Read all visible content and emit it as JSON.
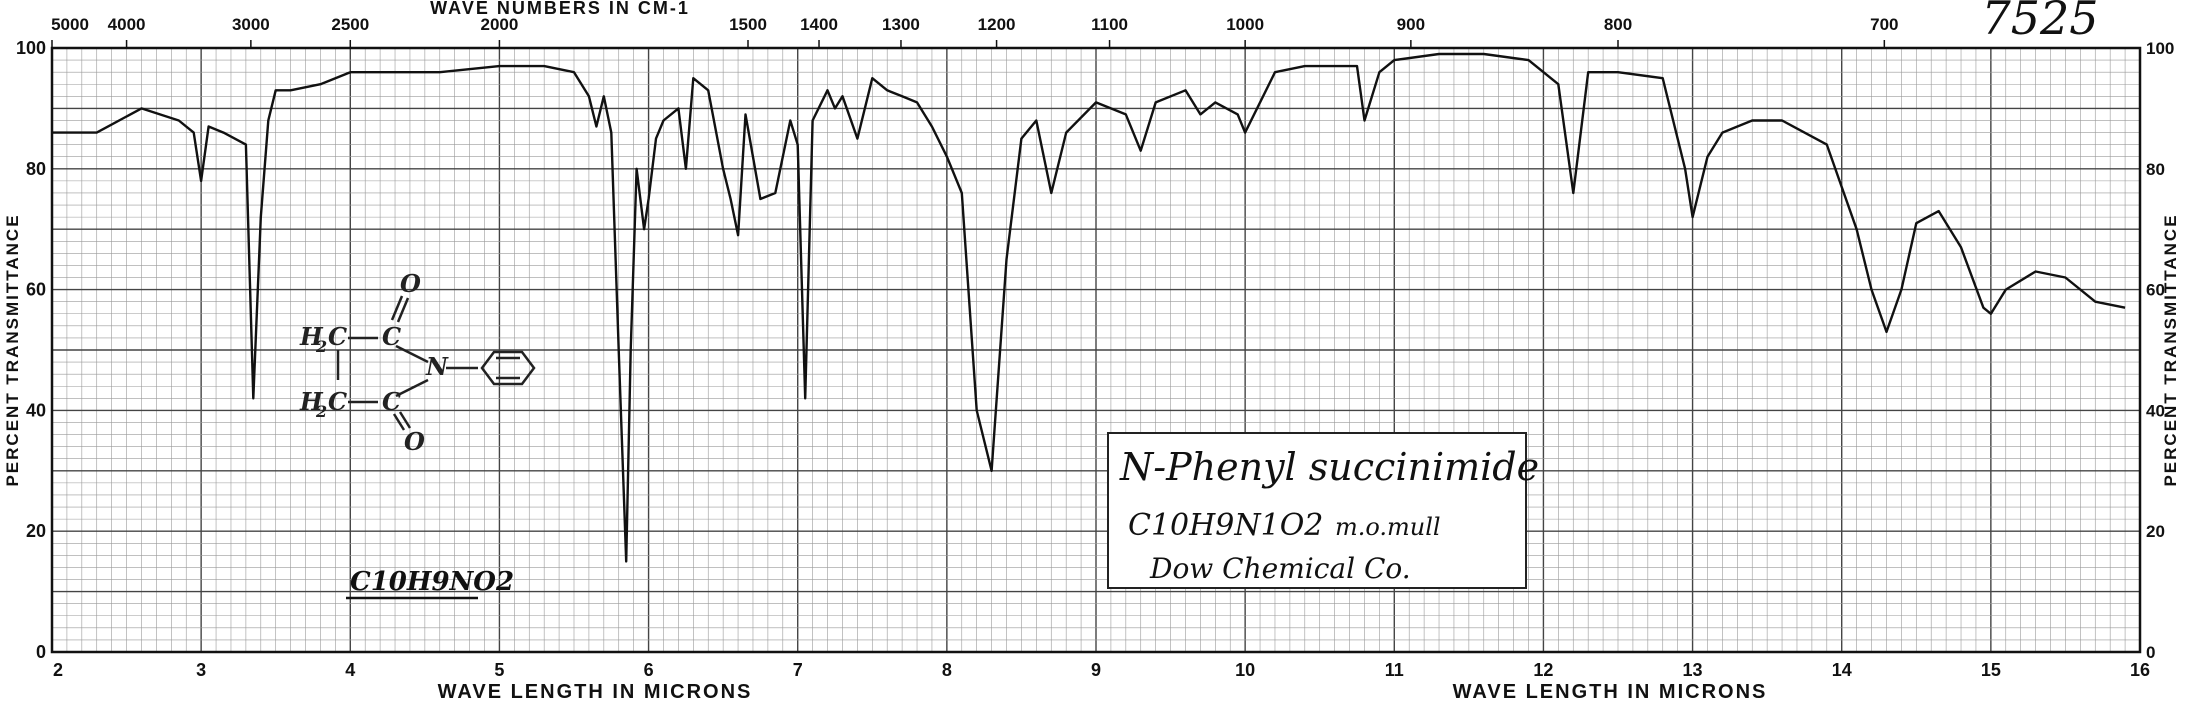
{
  "chart_data": {
    "type": "line",
    "x_axis": {
      "label": "WAVE LENGTH IN MICRONS",
      "range": [
        2,
        16
      ],
      "ticks": [
        2,
        3,
        4,
        5,
        6,
        7,
        8,
        9,
        10,
        11,
        12,
        13,
        14,
        15,
        16
      ]
    },
    "top_axis": {
      "label": "WAVE NUMBERS IN CM-1",
      "ticks": [
        {
          "label": "5000",
          "value": 5000
        },
        {
          "label": "4000",
          "value": 4000
        },
        {
          "label": "3000",
          "value": 3000
        },
        {
          "label": "2500",
          "value": 2500
        },
        {
          "label": "2000",
          "value": 2000
        },
        {
          "label": "1500",
          "value": 1500
        },
        {
          "label": "1400",
          "value": 1400
        },
        {
          "label": "1300",
          "value": 1300
        },
        {
          "label": "1200",
          "value": 1200
        },
        {
          "label": "1100",
          "value": 1100
        },
        {
          "label": "1000",
          "value": 1000
        },
        {
          "label": "900",
          "value": 900
        },
        {
          "label": "800",
          "value": 800
        },
        {
          "label": "700",
          "value": 700
        }
      ]
    },
    "y_axis": {
      "label": "PERCENT TRANSMITTANCE",
      "range": [
        0,
        100
      ],
      "left_ticks": [
        0,
        20,
        40,
        60,
        80,
        100
      ],
      "right_ticks": [
        0,
        20,
        40,
        60,
        80,
        100
      ]
    },
    "grid": true,
    "series": [
      {
        "x": [
          2.0,
          2.3,
          2.6,
          2.85,
          2.95,
          3.0,
          3.05,
          3.15,
          3.3,
          3.35,
          3.4,
          3.45,
          3.5,
          3.6,
          3.8,
          4.0,
          4.3,
          4.6,
          5.0,
          5.3,
          5.5,
          5.6,
          5.65,
          5.7,
          5.75,
          5.8,
          5.85,
          5.88,
          5.92,
          5.97,
          6.0,
          6.05,
          6.1,
          6.2,
          6.25,
          6.3,
          6.4,
          6.5,
          6.55,
          6.6,
          6.65,
          6.75,
          6.85,
          6.95,
          7.0,
          7.05,
          7.1,
          7.2,
          7.25,
          7.3,
          7.4,
          7.5,
          7.6,
          7.7,
          7.8,
          7.9,
          8.0,
          8.1,
          8.2,
          8.3,
          8.4,
          8.5,
          8.6,
          8.7,
          8.8,
          9.0,
          9.2,
          9.3,
          9.4,
          9.6,
          9.7,
          9.8,
          9.95,
          10.0,
          10.2,
          10.4,
          10.6,
          10.75,
          10.8,
          10.9,
          11.0,
          11.3,
          11.6,
          11.9,
          12.1,
          12.2,
          12.3,
          12.5,
          12.8,
          12.95,
          13.0,
          13.1,
          13.2,
          13.4,
          13.6,
          13.9,
          14.1,
          14.2,
          14.3,
          14.4,
          14.5,
          14.65,
          14.8,
          14.95,
          15.0,
          15.1,
          15.3,
          15.5,
          15.7,
          15.9
        ],
        "y": [
          86,
          86,
          90,
          88,
          86,
          78,
          87,
          86,
          84,
          42,
          72,
          88,
          93,
          93,
          94,
          96,
          96,
          96,
          97,
          97,
          96,
          92,
          87,
          92,
          86,
          50,
          15,
          50,
          80,
          70,
          75,
          85,
          88,
          90,
          80,
          95,
          93,
          80,
          75,
          69,
          89,
          75,
          76,
          88,
          84,
          42,
          88,
          93,
          90,
          92,
          85,
          95,
          93,
          92,
          91,
          87,
          82,
          76,
          40,
          30,
          65,
          85,
          88,
          76,
          86,
          91,
          89,
          83,
          91,
          93,
          89,
          91,
          89,
          86,
          96,
          97,
          97,
          97,
          88,
          96,
          98,
          99,
          99,
          98,
          94,
          76,
          96,
          96,
          95,
          80,
          72,
          82,
          86,
          88,
          88,
          84,
          70,
          60,
          53,
          60,
          71,
          73,
          67,
          57,
          56,
          60,
          63,
          62,
          58,
          57
        ]
      }
    ],
    "annotations": [
      "N-Phenyl succinimide",
      "C10H9N1O2",
      "m.o.mull",
      "Dow Chemical Co.",
      "C10H9NO2",
      "7525"
    ]
  }
}
